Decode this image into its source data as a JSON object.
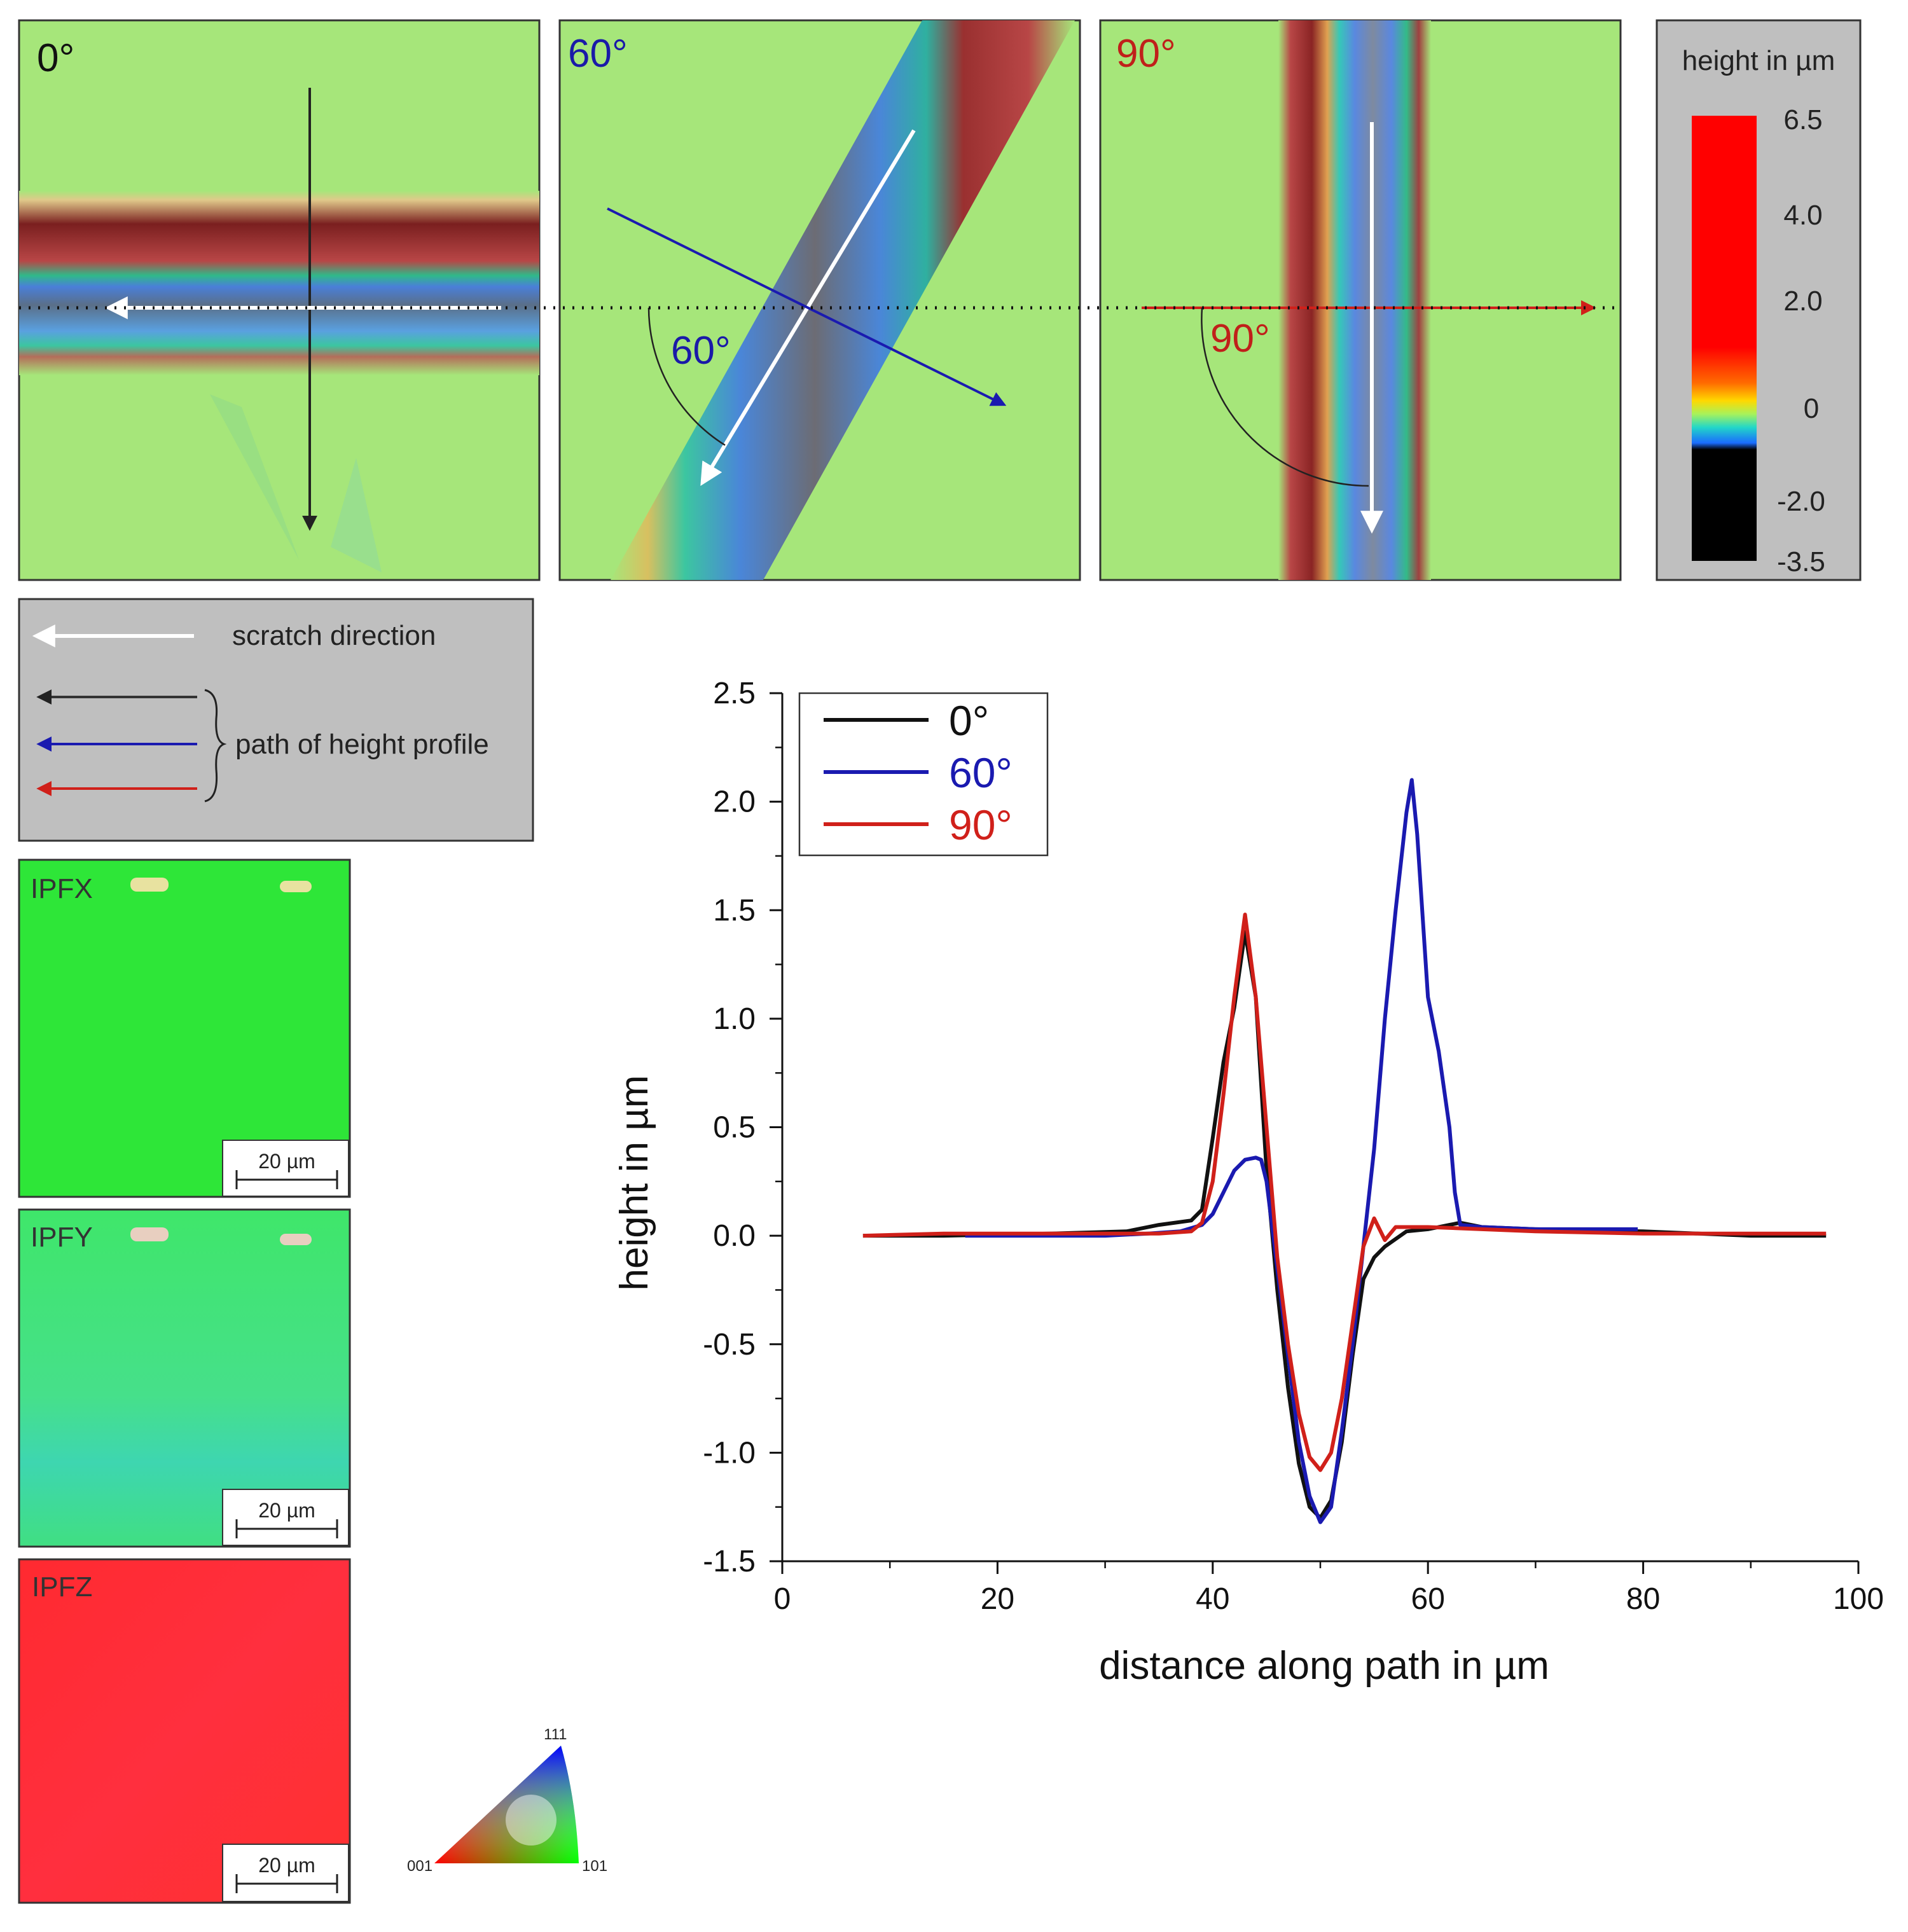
{
  "panels": [
    {
      "label": "0°",
      "color": "#111111",
      "angle_annotation": ""
    },
    {
      "label": "60°",
      "color": "#1a1aa8",
      "angle_annotation": "60°"
    },
    {
      "label": "90°",
      "color": "#c0201a",
      "angle_annotation": "90°"
    }
  ],
  "colorbar": {
    "title": "height in µm",
    "ticks": [
      "6.5",
      "4.0",
      "2.0",
      "0",
      "-2.0",
      "-3.5"
    ]
  },
  "legend_box": {
    "scratch_direction": "scratch direction",
    "path_of_height_profile": "path of height profile"
  },
  "ebsd_maps": [
    {
      "label": "IPFX",
      "scale_bar": "20 µm"
    },
    {
      "label": "IPFY",
      "scale_bar": "20 µm"
    },
    {
      "label": "IPFZ",
      "scale_bar": "20 µm"
    }
  ],
  "ipf_key": {
    "corner_001": "001",
    "corner_101": "101",
    "corner_111": "111"
  },
  "colors": {
    "black": "#111111",
    "blue": "#1a1ab0",
    "red": "#d0201a",
    "map_green": "#a6e67a"
  },
  "chart_data": {
    "type": "line",
    "title": "",
    "xlabel": "distance along path in µm",
    "ylabel": "height in µm",
    "xlim": [
      0,
      100
    ],
    "ylim": [
      -1.5,
      2.5
    ],
    "xticks": [
      0,
      20,
      40,
      60,
      80,
      100
    ],
    "yticks": [
      -1.5,
      -1.0,
      -0.5,
      0.0,
      0.5,
      1.0,
      1.5,
      2.0,
      2.5
    ],
    "ytick_labels": [
      "-1.5",
      "-1.0",
      "-0.5",
      "0.0",
      "0.5",
      "1.0",
      "1.5",
      "2.0",
      "2.5"
    ],
    "legend_position": "top-left",
    "series": [
      {
        "name": "0°",
        "color": "#111111",
        "x": [
          7.5,
          15,
          25,
          32,
          35,
          38,
          39,
          40,
          41,
          42,
          43,
          44,
          45,
          46,
          47,
          48,
          49,
          50,
          51,
          52,
          53,
          54,
          55,
          56,
          58,
          60,
          62,
          63,
          65,
          70,
          80,
          90,
          97
        ],
        "y": [
          0.0,
          0.0,
          0.01,
          0.02,
          0.05,
          0.07,
          0.12,
          0.45,
          0.8,
          1.05,
          1.4,
          1.1,
          0.3,
          -0.25,
          -0.7,
          -1.05,
          -1.25,
          -1.3,
          -1.22,
          -0.95,
          -0.55,
          -0.2,
          -0.1,
          -0.05,
          0.02,
          0.03,
          0.05,
          0.06,
          0.04,
          0.03,
          0.02,
          0.0,
          0.0
        ]
      },
      {
        "name": "60°",
        "color": "#1a1ab0",
        "x": [
          17,
          25,
          30,
          34,
          37,
          39,
          40,
          41,
          42,
          43,
          44,
          44.5,
          45,
          46,
          47,
          48,
          49,
          50,
          51,
          52,
          53,
          54,
          55,
          56,
          57,
          58,
          58.5,
          59,
          60,
          61,
          62,
          62.5,
          63,
          65,
          70,
          75,
          79.5
        ],
        "y": [
          0.0,
          0.0,
          0.0,
          0.01,
          0.02,
          0.05,
          0.1,
          0.2,
          0.3,
          0.35,
          0.36,
          0.35,
          0.25,
          -0.15,
          -0.55,
          -0.95,
          -1.2,
          -1.32,
          -1.25,
          -0.9,
          -0.5,
          -0.05,
          0.4,
          1.0,
          1.5,
          1.95,
          2.1,
          1.85,
          1.1,
          0.85,
          0.5,
          0.2,
          0.05,
          0.04,
          0.03,
          0.03,
          0.03
        ]
      },
      {
        "name": "90°",
        "color": "#d0201a",
        "x": [
          7.5,
          15,
          25,
          35,
          38,
          39,
          40,
          41,
          42,
          43,
          44,
          45,
          46,
          47,
          48,
          49,
          50,
          51,
          52,
          53,
          54,
          55,
          56,
          57,
          60,
          65,
          70,
          80,
          90,
          97
        ],
        "y": [
          0.0,
          0.01,
          0.01,
          0.01,
          0.02,
          0.06,
          0.25,
          0.65,
          1.1,
          1.48,
          1.1,
          0.5,
          -0.1,
          -0.5,
          -0.82,
          -1.02,
          -1.08,
          -1.0,
          -0.75,
          -0.4,
          -0.05,
          0.08,
          -0.02,
          0.04,
          0.04,
          0.03,
          0.02,
          0.01,
          0.01,
          0.01
        ]
      }
    ]
  }
}
